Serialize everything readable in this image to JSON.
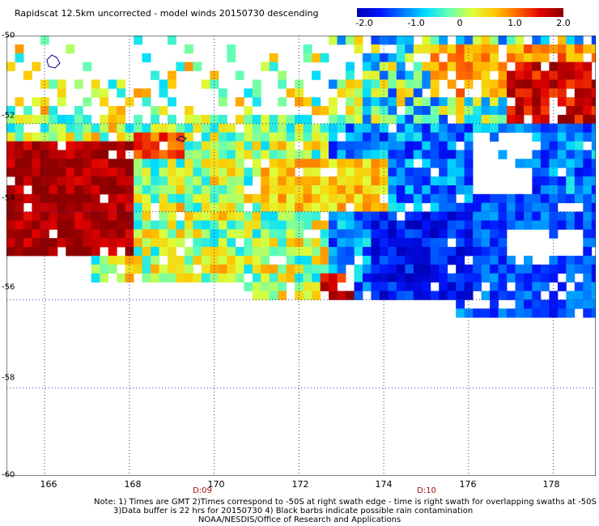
{
  "title": "Rapidscat 12.5km uncorrected - model winds 20150730 descending",
  "colorbar": {
    "ticks": [
      "-2.0",
      "-1.0",
      "0",
      "1.0",
      "2.0"
    ],
    "stops": [
      "#0000b4",
      "#0014ff",
      "#0078ff",
      "#00dcff",
      "#64ffb4",
      "#dcff3c",
      "#ffc800",
      "#ff6400",
      "#e10000",
      "#8c0000"
    ]
  },
  "chart_data": {
    "type": "heatmap",
    "title": "Rapidscat 12.5km uncorrected - model winds 20150730 descending",
    "xlim": [
      165.1,
      179.0
    ],
    "ylim": [
      -60.0,
      -50.0
    ],
    "x_ticks": [
      "166",
      "168",
      "170",
      "172",
      "174",
      "176",
      "178"
    ],
    "y_ticks": [
      "-50",
      "-52",
      "-54",
      "-56",
      "-58",
      "-60"
    ],
    "value_range": [
      -2.0,
      2.0
    ],
    "cell_size_deg": [
      0.2,
      0.2
    ],
    "grid": true,
    "regions": [
      {
        "lon": [
          165.1,
          167.9
        ],
        "lat": [
          -55.0,
          -52.4
        ],
        "value": 1.9
      },
      {
        "lon": [
          166.0,
          166.6
        ],
        "lat": [
          -51.0,
          -50.6
        ],
        "value": null
      },
      {
        "lon": [
          168.0,
          169.2
        ],
        "lat": [
          -52.8,
          -52.2
        ],
        "value": 1.2
      },
      {
        "lon": [
          171.0,
          174.0
        ],
        "lat": [
          -54.0,
          -52.8
        ],
        "value": 0.6
      },
      {
        "lon": [
          172.4,
          173.2
        ],
        "lat": [
          -56.0,
          -55.4
        ],
        "value": 1.6
      },
      {
        "lon": [
          175.0,
          179.0
        ],
        "lat": [
          -51.4,
          -50.2
        ],
        "value": 0.9
      },
      {
        "lon": [
          176.8,
          179.0
        ],
        "lat": [
          -52.0,
          -50.6
        ],
        "value": 1.6
      },
      {
        "lon": [
          173.5,
          176.0
        ],
        "lat": [
          -56.2,
          -54.0
        ],
        "value": -1.6
      },
      {
        "lon": [
          176.0,
          179.0
        ],
        "lat": [
          -56.4,
          -53.6
        ],
        "value": -1.3
      }
    ]
  },
  "time_labels": [
    {
      "text": "D:09",
      "lon": 169.7
    },
    {
      "text": "D:10",
      "lon": 174.8
    }
  ],
  "note_lines": [
    "Note: 1) Times are GMT 2)Times correspond to -50S at right swath edge - time is right swath for overlapping swaths at -50S",
    "3)Data buffer is 22 hrs for 20150730 4) Black barbs indicate possible rain contamination"
  ],
  "credit": "NOAA/NESDIS/Office of Research and Applications"
}
